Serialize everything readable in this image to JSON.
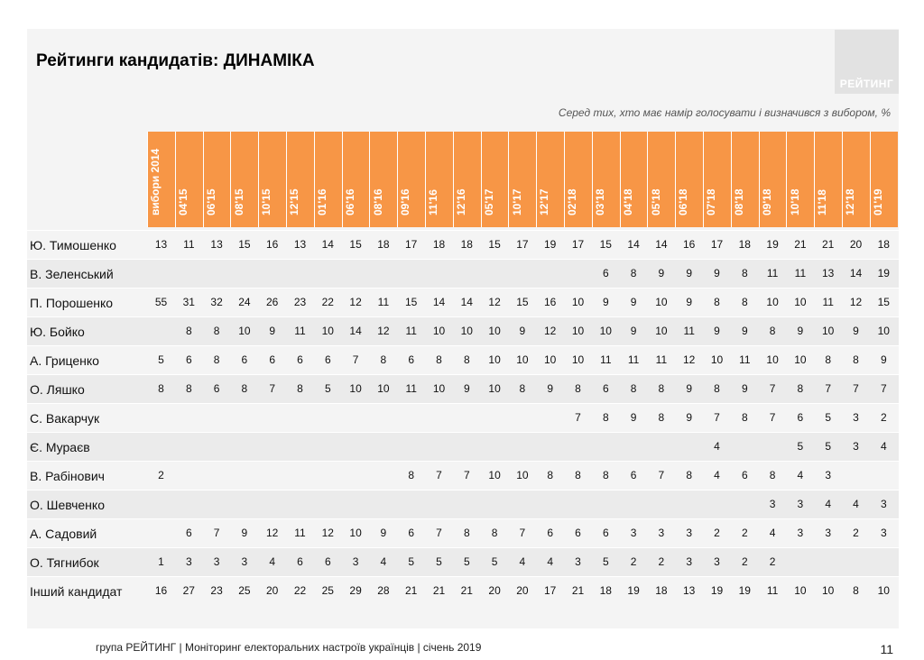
{
  "title": "Рейтинги кандидатів: ДИНАМІКА",
  "logo_text": "РЕЙТИНГ",
  "subtitle": "Серед тих, хто має намір голосувати і визначився з вибором, %",
  "columns": [
    "вибори 2014",
    "04'15",
    "06'15",
    "08'15",
    "10'15",
    "12'15",
    "01'16",
    "06'16",
    "08'16",
    "09'16",
    "11'16",
    "12'16",
    "05'17",
    "10'17",
    "12'17",
    "02'18",
    "03'18",
    "04'18",
    "05'18",
    "06'18",
    "07'18",
    "08'18",
    "09'18",
    "10'18",
    "11'18",
    "12'18",
    "01'19"
  ],
  "rows": [
    {
      "name": "Ю. Тимошенко",
      "values": [
        "13",
        "11",
        "13",
        "15",
        "16",
        "13",
        "14",
        "15",
        "18",
        "17",
        "18",
        "18",
        "15",
        "17",
        "19",
        "17",
        "15",
        "14",
        "14",
        "16",
        "17",
        "18",
        "19",
        "21",
        "21",
        "20",
        "18"
      ]
    },
    {
      "name": "В. Зеленський",
      "values": [
        "",
        "",
        "",
        "",
        "",
        "",
        "",
        "",
        "",
        "",
        "",
        "",
        "",
        "",
        "",
        "",
        "6",
        "8",
        "9",
        "9",
        "9",
        "8",
        "11",
        "11",
        "13",
        "14",
        "19"
      ]
    },
    {
      "name": "П. Порошенко",
      "values": [
        "55",
        "31",
        "32",
        "24",
        "26",
        "23",
        "22",
        "12",
        "11",
        "15",
        "14",
        "14",
        "12",
        "15",
        "16",
        "10",
        "9",
        "9",
        "10",
        "9",
        "8",
        "8",
        "10",
        "10",
        "11",
        "12",
        "15"
      ]
    },
    {
      "name": "Ю. Бойко",
      "values": [
        "",
        "8",
        "8",
        "10",
        "9",
        "11",
        "10",
        "14",
        "12",
        "11",
        "10",
        "10",
        "10",
        "9",
        "12",
        "10",
        "10",
        "9",
        "10",
        "11",
        "9",
        "9",
        "8",
        "9",
        "10",
        "9",
        "10"
      ]
    },
    {
      "name": "А. Гриценко",
      "values": [
        "5",
        "6",
        "8",
        "6",
        "6",
        "6",
        "6",
        "7",
        "8",
        "6",
        "8",
        "8",
        "10",
        "10",
        "10",
        "10",
        "11",
        "11",
        "11",
        "12",
        "10",
        "11",
        "10",
        "10",
        "8",
        "8",
        "9"
      ]
    },
    {
      "name": "О. Ляшко",
      "values": [
        "8",
        "8",
        "6",
        "8",
        "7",
        "8",
        "5",
        "10",
        "10",
        "11",
        "10",
        "9",
        "10",
        "8",
        "9",
        "8",
        "6",
        "8",
        "8",
        "9",
        "8",
        "9",
        "7",
        "8",
        "7",
        "7",
        "7"
      ]
    },
    {
      "name": "С. Вакарчук",
      "values": [
        "",
        "",
        "",
        "",
        "",
        "",
        "",
        "",
        "",
        "",
        "",
        "",
        "",
        "",
        "",
        "7",
        "8",
        "9",
        "8",
        "9",
        "7",
        "8",
        "7",
        "6",
        "5",
        "3",
        "2"
      ]
    },
    {
      "name": "Є. Мураєв",
      "values": [
        "",
        "",
        "",
        "",
        "",
        "",
        "",
        "",
        "",
        "",
        "",
        "",
        "",
        "",
        "",
        "",
        "",
        "",
        "",
        "",
        "4",
        "",
        "",
        "5",
        "5",
        "3",
        "4"
      ]
    },
    {
      "name": "В. Рабінович",
      "values": [
        "2",
        "",
        "",
        "",
        "",
        "",
        "",
        "",
        "",
        "8",
        "7",
        "7",
        "10",
        "10",
        "8",
        "8",
        "8",
        "6",
        "7",
        "8",
        "4",
        "6",
        "8",
        "4",
        "3",
        "",
        ""
      ]
    },
    {
      "name": "О. Шевченко",
      "values": [
        "",
        "",
        "",
        "",
        "",
        "",
        "",
        "",
        "",
        "",
        "",
        "",
        "",
        "",
        "",
        "",
        "",
        "",
        "",
        "",
        "",
        "",
        "3",
        "3",
        "4",
        "4",
        "3"
      ]
    },
    {
      "name": "А. Садовий",
      "values": [
        "",
        "6",
        "7",
        "9",
        "12",
        "11",
        "12",
        "10",
        "9",
        "6",
        "7",
        "8",
        "8",
        "7",
        "6",
        "6",
        "6",
        "3",
        "3",
        "3",
        "2",
        "2",
        "4",
        "3",
        "3",
        "2",
        "3"
      ]
    },
    {
      "name": "О. Тягнибок",
      "values": [
        "1",
        "3",
        "3",
        "3",
        "4",
        "6",
        "6",
        "3",
        "4",
        "5",
        "5",
        "5",
        "5",
        "4",
        "4",
        "3",
        "5",
        "2",
        "2",
        "3",
        "3",
        "2",
        "2",
        "",
        "",
        "",
        ""
      ]
    },
    {
      "name": "Інший кандидат",
      "values": [
        "16",
        "27",
        "23",
        "25",
        "20",
        "22",
        "25",
        "29",
        "28",
        "21",
        "21",
        "21",
        "20",
        "20",
        "17",
        "21",
        "18",
        "19",
        "18",
        "13",
        "19",
        "19",
        "11",
        "10",
        "10",
        "8",
        "10"
      ]
    }
  ],
  "footer": "група РЕЙТИНГ |  Моніторинг електоральних настроїв українців  |  січень  2019",
  "page_number": "11",
  "colors": {
    "header_bg": "#f79646",
    "row_alt": "#ebebeb",
    "panel": "#f4f4f4"
  }
}
